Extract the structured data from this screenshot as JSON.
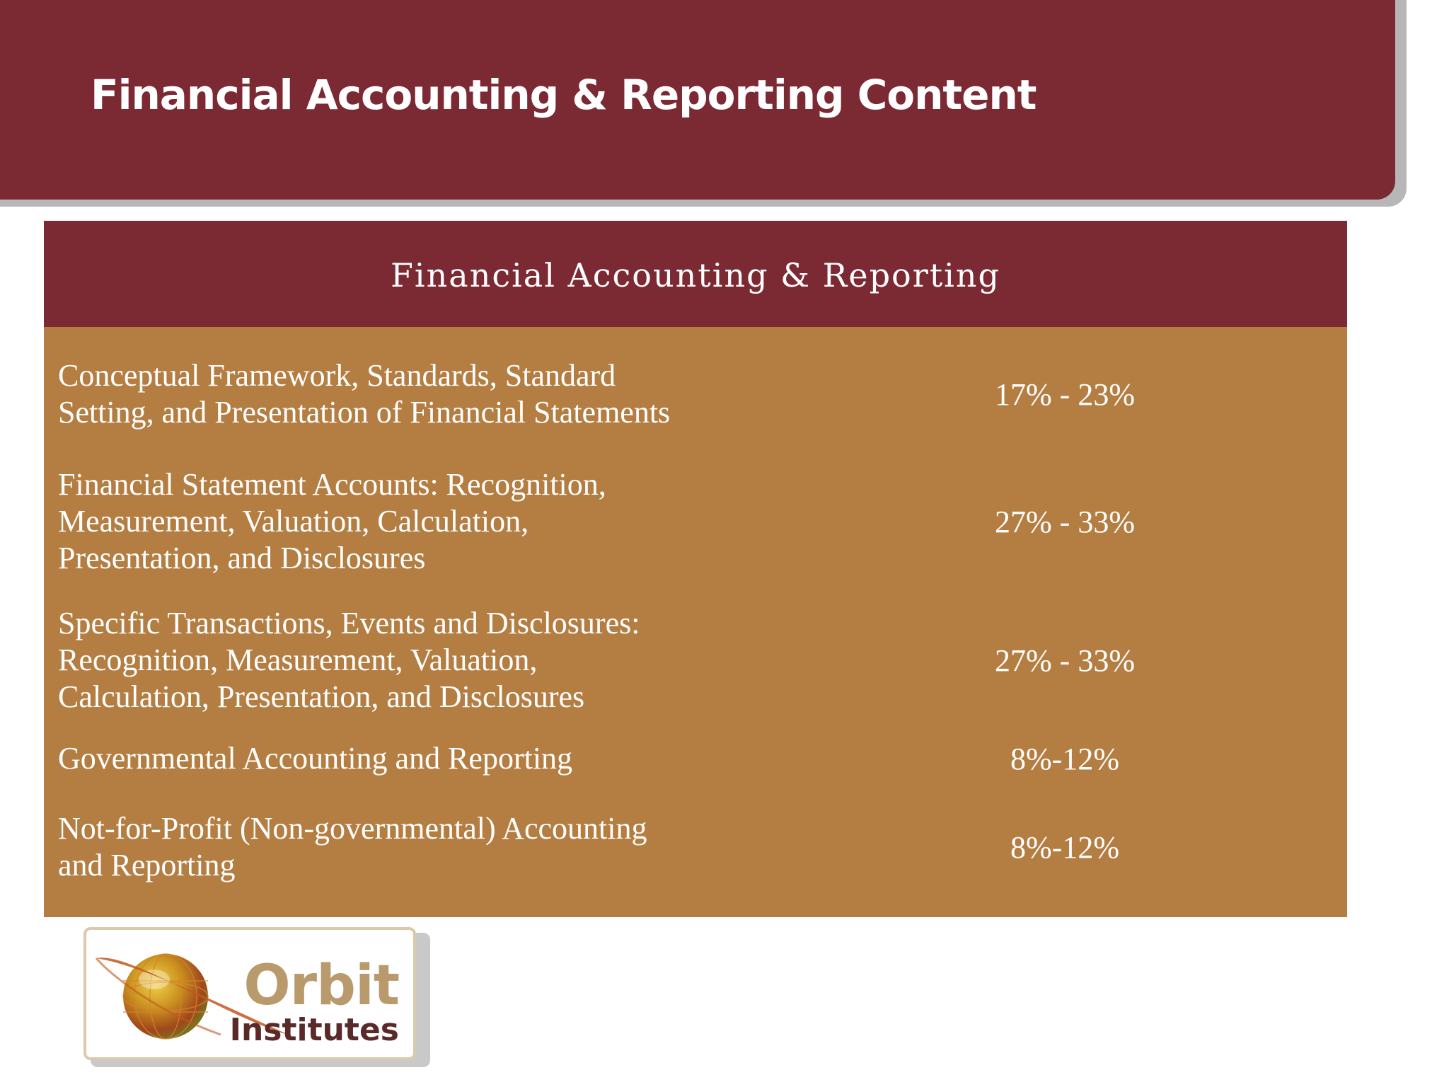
{
  "header": {
    "title": "Financial Accounting & Reporting  Content"
  },
  "table": {
    "heading": "Financial Accounting & Reporting",
    "rows": [
      {
        "topic": "Conceptual Framework, Standards, Standard Setting, and Presentation of Financial Statements",
        "weight": "17% - 23%"
      },
      {
        "topic": "Financial Statement Accounts: Recognition, Measurement, Valuation, Calculation, Presentation, and Disclosures",
        "weight": "27% - 33%"
      },
      {
        "topic": "Specific Transactions, Events and Disclosures: Recognition, Measurement, Valuation, Calculation, Presentation, and Disclosures",
        "weight": "27% - 33%"
      },
      {
        "topic": "Governmental Accounting and Reporting",
        "weight": "8%-12%"
      },
      {
        "topic": "Not-for-Profit (Non-governmental) Accounting and Reporting",
        "weight": "8%-12%"
      }
    ]
  },
  "logo": {
    "line1": "Orbit",
    "line2": "Institutes",
    "icon": "globe-orbit-icon"
  },
  "colors": {
    "banner": "#7b2a34",
    "table_body": "#b47e43",
    "logo_text_primary": "#b89a6c",
    "logo_text_secondary": "#5a2a2a"
  }
}
